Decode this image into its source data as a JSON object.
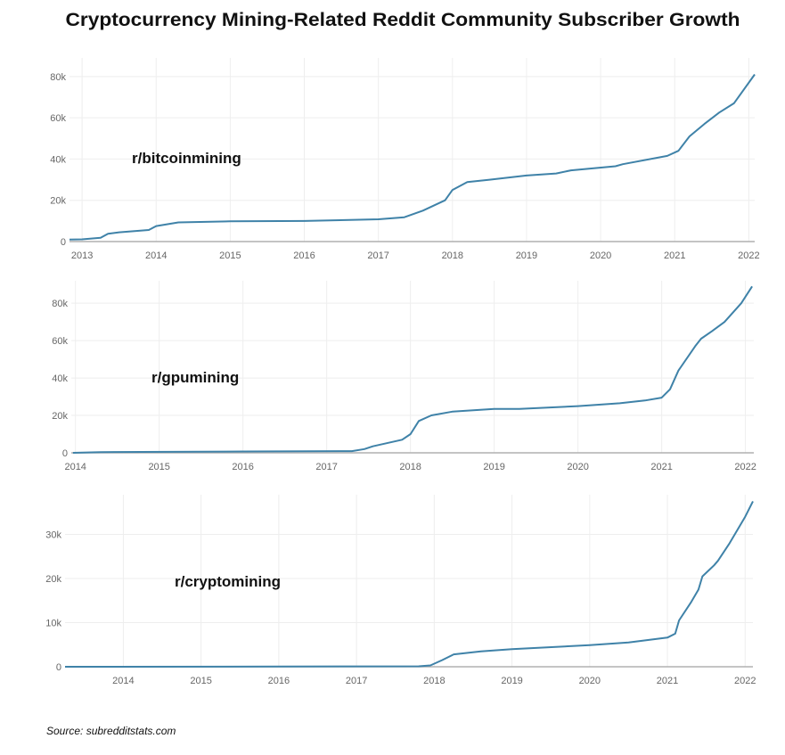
{
  "chart_data": [
    {
      "type": "line",
      "title": "Cryptocurrency Mining-Related Reddit Community Subscriber Growth",
      "annotation": "r/bitcoinmining",
      "xlim": [
        2012.83,
        2022.08
      ],
      "ylim": [
        0,
        89000
      ],
      "x_ticks": [
        2013,
        2014,
        2015,
        2016,
        2017,
        2018,
        2019,
        2020,
        2021,
        2022
      ],
      "y_ticks": [
        0,
        20000,
        40000,
        60000,
        80000
      ],
      "y_tick_labels": [
        "0",
        "20k",
        "40k",
        "60k",
        "80k"
      ],
      "grid": true,
      "color": "#3f82a8",
      "x": [
        2012.83,
        2013.0,
        2013.25,
        2013.35,
        2013.5,
        2013.9,
        2014.0,
        2014.3,
        2015.0,
        2016.0,
        2017.0,
        2017.35,
        2017.6,
        2017.9,
        2018.0,
        2018.2,
        2018.5,
        2019.0,
        2019.4,
        2019.6,
        2020.2,
        2020.3,
        2020.9,
        2021.05,
        2021.2,
        2021.4,
        2021.6,
        2021.8,
        2022.08
      ],
      "y": [
        1000,
        1100,
        1800,
        3800,
        4500,
        5600,
        7500,
        9300,
        9800,
        10000,
        10800,
        11800,
        15000,
        20000,
        25000,
        28800,
        30000,
        32000,
        33000,
        34500,
        36500,
        37500,
        41500,
        44000,
        51000,
        57000,
        62500,
        67000,
        81000
      ]
    },
    {
      "type": "line",
      "annotation": "r/gpumining",
      "xlim": [
        2013.95,
        2022.1
      ],
      "ylim": [
        0,
        92000
      ],
      "x_ticks": [
        2014,
        2015,
        2016,
        2017,
        2018,
        2019,
        2020,
        2021,
        2022
      ],
      "y_ticks": [
        0,
        20000,
        40000,
        60000,
        80000
      ],
      "y_tick_labels": [
        "0",
        "20k",
        "40k",
        "60k",
        "80k"
      ],
      "grid": true,
      "color": "#3f82a8",
      "x": [
        2013.97,
        2014.3,
        2016.0,
        2017.3,
        2017.45,
        2017.55,
        2017.9,
        2018.0,
        2018.1,
        2018.25,
        2018.5,
        2019.0,
        2019.3,
        2020.0,
        2020.5,
        2020.8,
        2021.0,
        2021.1,
        2021.2,
        2021.4,
        2021.47,
        2021.6,
        2021.75,
        2021.95,
        2022.08
      ],
      "y": [
        0,
        400,
        700,
        900,
        2000,
        3500,
        7000,
        10000,
        17000,
        20000,
        22000,
        23500,
        23500,
        25000,
        26500,
        28000,
        29500,
        34000,
        44000,
        57000,
        61000,
        65000,
        70000,
        80000,
        89000
      ]
    },
    {
      "type": "line",
      "annotation": "r/cryptomining",
      "xlim": [
        2013.25,
        2022.1
      ],
      "ylim": [
        0,
        39000
      ],
      "x_ticks": [
        2014,
        2015,
        2016,
        2017,
        2018,
        2019,
        2020,
        2021,
        2022
      ],
      "y_ticks": [
        0,
        10000,
        20000,
        30000
      ],
      "y_tick_labels": [
        "0",
        "10k",
        "20k",
        "30k"
      ],
      "grid": true,
      "color": "#3f82a8",
      "x": [
        2013.25,
        2016.0,
        2017.8,
        2017.95,
        2018.1,
        2018.25,
        2018.6,
        2019.0,
        2020.0,
        2020.5,
        2021.0,
        2021.1,
        2021.15,
        2021.3,
        2021.4,
        2021.45,
        2021.6,
        2021.65,
        2021.8,
        2022.0,
        2022.1
      ],
      "y": [
        0,
        50,
        100,
        300,
        1500,
        2800,
        3500,
        4000,
        4900,
        5500,
        6600,
        7500,
        10500,
        14500,
        17500,
        20500,
        23000,
        24000,
        28000,
        34000,
        37500
      ]
    }
  ],
  "title": "Cryptocurrency Mining-Related Reddit Community Subscriber Growth",
  "source": "Source: subredditstats.com"
}
